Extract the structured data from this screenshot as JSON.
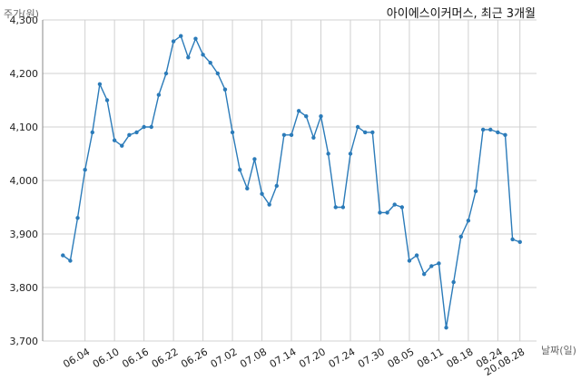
{
  "chart_data": {
    "type": "line",
    "title": "아이에스이커머스, 최근 3개월",
    "ylabel": "주가(원)",
    "xlabel": "날짜(일)",
    "ylim": [
      3700,
      4300
    ],
    "yticks": [
      3700,
      3800,
      3900,
      4000,
      4100,
      4200,
      4300
    ],
    "ytick_labels": [
      "3,700",
      "3,800",
      "3,900",
      "4,000",
      "4,100",
      "4,200",
      "4,300"
    ],
    "xtick_labels": [
      "06.04",
      "06.10",
      "06.16",
      "06.22",
      "06.26",
      "07.02",
      "07.08",
      "07.14",
      "07.20",
      "07.24",
      "07.30",
      "08.05",
      "08.11",
      "08.18",
      "08.24",
      "20.08.28"
    ],
    "xtick_index": [
      3,
      7,
      11,
      15,
      19,
      23,
      27,
      31,
      35,
      39,
      43,
      47,
      51,
      55,
      59,
      62
    ],
    "grid": true,
    "line_color": "#2b7bb9",
    "series": [
      {
        "values": [
          3860,
          3850,
          3930,
          4020,
          4090,
          4180,
          4150,
          4075,
          4065,
          4085,
          4090,
          4100,
          4100,
          4160,
          4200,
          4260,
          4270,
          4230,
          4265,
          4235,
          4220,
          4200,
          4170,
          4090,
          4020,
          3985,
          4040,
          3975,
          3955,
          3990,
          4085,
          4085,
          4130,
          4120,
          4080,
          4120,
          4050,
          3950,
          3950,
          4050,
          4100,
          4090,
          4090,
          3940,
          3940,
          3955,
          3950,
          3850,
          3860,
          3825,
          3840,
          3845,
          3725,
          3810,
          3895,
          3925,
          3980,
          4095,
          4095,
          4090,
          4085,
          3890,
          3885
        ]
      }
    ]
  }
}
